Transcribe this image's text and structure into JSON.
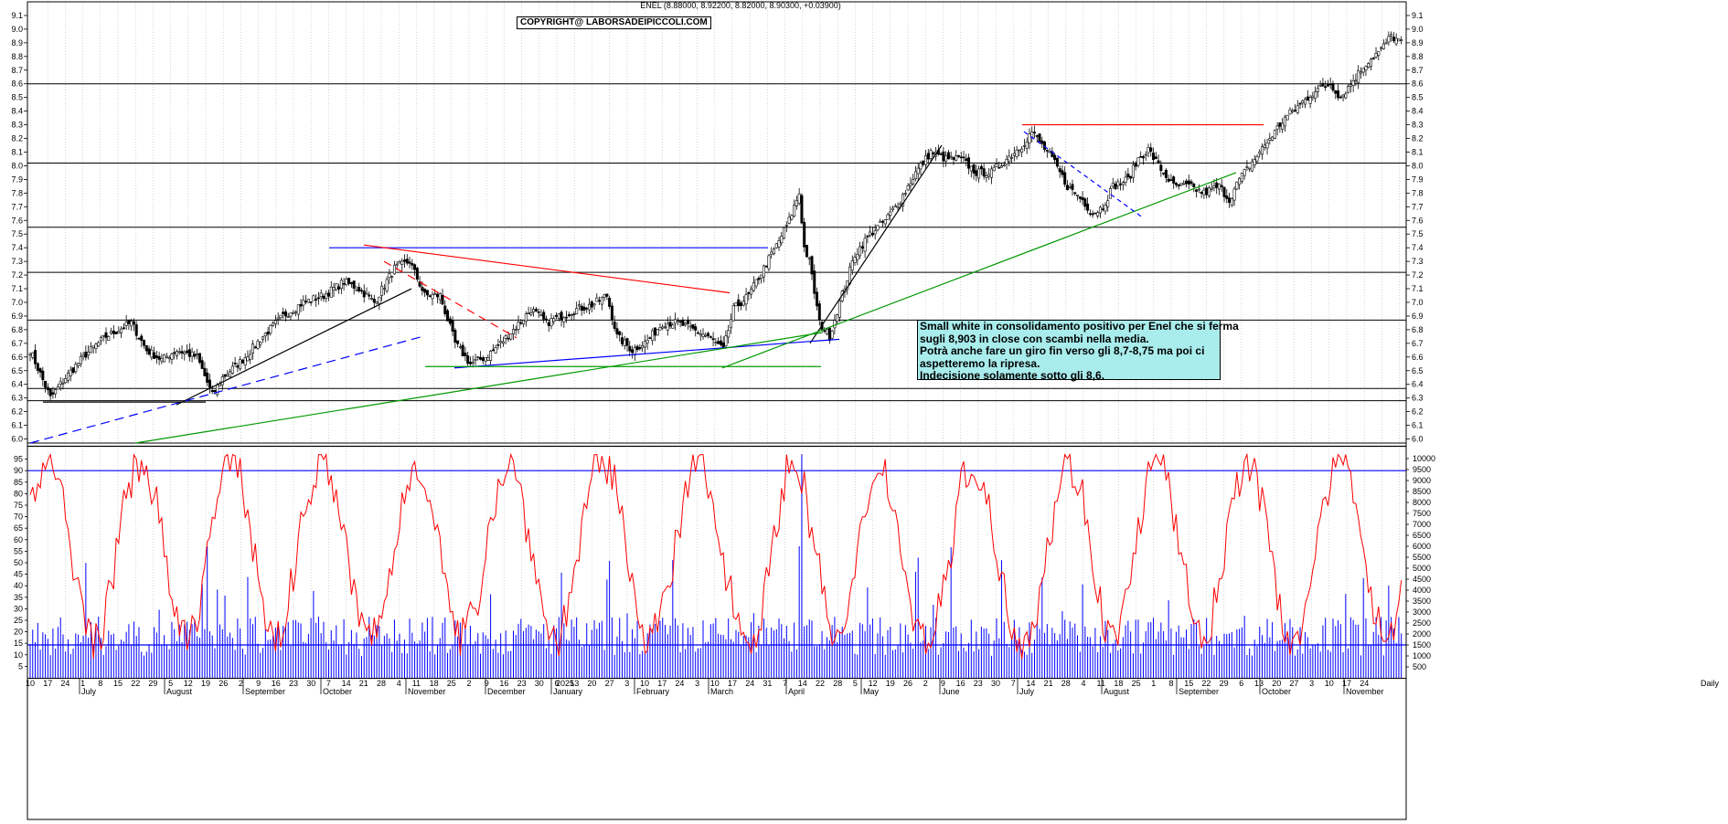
{
  "header": {
    "title": "ENEL (8.88000, 8.92200, 8.82000, 8.90300, +0.03900)",
    "copyright": "COPYRIGHT@ LABORSADEIPICCOLI.COM"
  },
  "annotation": {
    "lines": [
      "Small white in consolidamento positivo per Enel che si ferma",
      "sugli 8,903 in close con scambi nella media.",
      "Potrà anche fare un giro fin verso gli 8,7-8,75 ma poi ci",
      "aspetteremo la ripresa.",
      "Indecisione solamente sotto gli 8,6."
    ]
  },
  "colors": {
    "candle": "#000000",
    "grid": "#bbbbbb",
    "stochastic": "#ff0000",
    "volume": "#0000ff",
    "red_trend": "#ff0000",
    "blue_trend": "#0000ff",
    "green_trend": "#009900",
    "black_trend": "#000000",
    "note_bg": "#a9ecec"
  },
  "chart_data": [
    {
      "type": "candlestick",
      "title": "ENEL (8.88000, 8.92200, 8.82000, 8.90300, +0.03900)",
      "ylim": [
        5.95,
        9.2
      ],
      "y_ticks": [
        6.0,
        6.1,
        6.2,
        6.3,
        6.4,
        6.5,
        6.6,
        6.7,
        6.8,
        6.9,
        7.0,
        7.1,
        7.2,
        7.3,
        7.4,
        7.5,
        7.6,
        7.7,
        7.8,
        7.9,
        8.0,
        8.1,
        8.2,
        8.3,
        8.4,
        8.5,
        8.6,
        8.7,
        8.8,
        8.9,
        9.0,
        9.1
      ],
      "y_tick_labels": [
        "6.0",
        "6.1",
        "6.2",
        "6.3",
        "6.4",
        "6.5",
        "6.6",
        "6.7",
        "6.8",
        "6.9",
        "7.0",
        "7.1",
        "7.2",
        "7.3",
        "7.4",
        "7.5",
        "7.6",
        "7.7",
        "7.8",
        "7.9",
        "8.0",
        "8.1",
        "8.2",
        "8.3",
        "8.4",
        "8.5",
        "8.6",
        "8.7",
        "8.8",
        "8.9",
        "9.0",
        "9.1"
      ],
      "sessions": 340,
      "close_path": [
        [
          0,
          6.65
        ],
        [
          8,
          6.3
        ],
        [
          14,
          6.45
        ],
        [
          22,
          6.62
        ],
        [
          30,
          6.75
        ],
        [
          40,
          6.85
        ],
        [
          46,
          6.65
        ],
        [
          52,
          6.58
        ],
        [
          58,
          6.65
        ],
        [
          66,
          6.6
        ],
        [
          72,
          6.32
        ],
        [
          76,
          6.45
        ],
        [
          84,
          6.58
        ],
        [
          92,
          6.75
        ],
        [
          100,
          6.9
        ],
        [
          108,
          7.0
        ],
        [
          116,
          7.05
        ],
        [
          124,
          7.15
        ],
        [
          130,
          7.1
        ],
        [
          136,
          7.0
        ],
        [
          144,
          7.25
        ],
        [
          150,
          7.3
        ],
        [
          156,
          7.05
        ],
        [
          162,
          7.05
        ],
        [
          168,
          6.7
        ],
        [
          174,
          6.55
        ],
        [
          180,
          6.6
        ],
        [
          186,
          6.7
        ],
        [
          192,
          6.82
        ],
        [
          198,
          6.95
        ],
        [
          204,
          6.85
        ],
        [
          210,
          6.9
        ],
        [
          216,
          6.95
        ],
        [
          222,
          6.98
        ],
        [
          228,
          7.05
        ],
        [
          232,
          6.75
        ],
        [
          238,
          6.65
        ],
        [
          244,
          6.72
        ],
        [
          250,
          6.85
        ],
        [
          256,
          6.85
        ],
        [
          262,
          6.8
        ],
        [
          268,
          6.75
        ],
        [
          274,
          6.65
        ],
        [
          278,
          6.95
        ],
        [
          284,
          7.05
        ],
        [
          290,
          7.25
        ],
        [
          296,
          7.45
        ],
        [
          300,
          7.6
        ],
        [
          304,
          7.8
        ],
        [
          306,
          7.4
        ],
        [
          308,
          7.3
        ],
        [
          312,
          6.85
        ],
        [
          316,
          6.75
        ],
        [
          320,
          7.0
        ],
        [
          326,
          7.35
        ],
        [
          332,
          7.5
        ],
        [
          338,
          7.6
        ],
        [
          344,
          7.75
        ],
        [
          350,
          7.95
        ],
        [
          356,
          8.1
        ],
        [
          362,
          8.05
        ],
        [
          368,
          8.05
        ],
        [
          374,
          7.95
        ],
        [
          380,
          7.95
        ],
        [
          386,
          8.05
        ],
        [
          392,
          8.15
        ],
        [
          396,
          8.25
        ],
        [
          400,
          8.15
        ],
        [
          404,
          8.05
        ],
        [
          410,
          7.85
        ],
        [
          416,
          7.75
        ],
        [
          420,
          7.65
        ],
        [
          424,
          7.7
        ],
        [
          428,
          7.85
        ],
        [
          434,
          7.9
        ],
        [
          438,
          8.05
        ],
        [
          442,
          8.12
        ],
        [
          446,
          8.0
        ],
        [
          452,
          7.85
        ],
        [
          458,
          7.85
        ],
        [
          464,
          7.8
        ],
        [
          470,
          7.85
        ],
        [
          474,
          7.75
        ],
        [
          478,
          7.9
        ],
        [
          484,
          8.05
        ],
        [
          490,
          8.2
        ],
        [
          496,
          8.35
        ],
        [
          502,
          8.45
        ],
        [
          508,
          8.55
        ],
        [
          514,
          8.6
        ],
        [
          518,
          8.5
        ],
        [
          522,
          8.6
        ],
        [
          528,
          8.75
        ],
        [
          534,
          8.85
        ],
        [
          538,
          8.95
        ],
        [
          542,
          8.9
        ]
      ]
    },
    {
      "type": "line",
      "name": "stochastic",
      "ylim": [
        0,
        100
      ],
      "y_ticks": [
        5,
        10,
        15,
        20,
        25,
        30,
        35,
        40,
        45,
        50,
        55,
        60,
        65,
        70,
        75,
        80,
        85,
        90,
        95
      ],
      "y_tick_labels": [
        "5",
        "10",
        "15",
        "20",
        "25",
        "30",
        "35",
        "40",
        "45",
        "50",
        "55",
        "60",
        "65",
        "70",
        "75",
        "80",
        "85",
        "90",
        "95"
      ],
      "reference_level": 90
    },
    {
      "type": "bar",
      "name": "volume",
      "ylim": [
        0,
        10500
      ],
      "y_ticks": [
        500,
        1000,
        1500,
        2000,
        2500,
        3000,
        3500,
        4000,
        4500,
        5000,
        5500,
        6000,
        6500,
        7000,
        7500,
        8000,
        8500,
        9000,
        9500,
        10000
      ],
      "y_tick_labels": [
        "500",
        "1000",
        "1500",
        "2000",
        "2500",
        "3000",
        "3500",
        "4000",
        "4500",
        "5000",
        "5500",
        "6000",
        "6500",
        "7000",
        "7500",
        "8000",
        "8500",
        "9000",
        "9500",
        "10000"
      ],
      "reference_level": 1500
    }
  ],
  "x_axis": {
    "day_labels": [
      "10",
      "17",
      "24",
      "1",
      "8",
      "15",
      "22",
      "29",
      "5",
      "12",
      "19",
      "26",
      "2",
      "9",
      "16",
      "23",
      "30",
      "7",
      "14",
      "21",
      "28",
      "4",
      "11",
      "18",
      "25",
      "2",
      "9",
      "16",
      "23",
      "30",
      "6",
      "13",
      "20",
      "27",
      "3",
      "10",
      "17",
      "24",
      "3",
      "10",
      "17",
      "24",
      "31",
      "7",
      "14",
      "22",
      "28",
      "5",
      "12",
      "19",
      "26",
      "2",
      "9",
      "16",
      "23",
      "30",
      "7",
      "14",
      "21",
      "28",
      "4",
      "11",
      "18",
      "25",
      "1",
      "8",
      "15",
      "22",
      "29",
      "6",
      "13",
      "20",
      "27",
      "3",
      "10",
      "17",
      "24"
    ],
    "month_labels": [
      "July",
      "August",
      "September",
      "October",
      "November",
      "December",
      "2025",
      "January",
      "February",
      "March",
      "April",
      "May",
      "June",
      "July",
      "August",
      "September",
      "October",
      "November"
    ],
    "right_label": "Daily"
  }
}
